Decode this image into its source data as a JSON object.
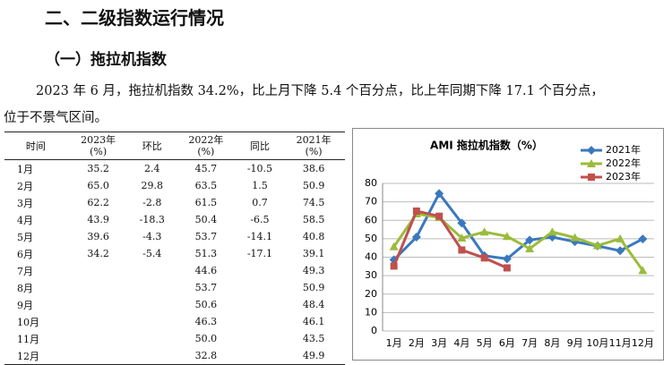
{
  "heading": "二、二级指数运行情况",
  "subheading": "（一）拖拉机指数",
  "paragraph": [
    "2023 年 6 月，拖拉机指数 34.2%，比上月下降 5.4 个百分点，比上年同期下降 17.1 个百分点，",
    "位于不景气区间。"
  ],
  "table": {
    "header": [
      [
        "时间"
      ],
      [
        "2023年",
        "(%)"
      ],
      [
        "环比"
      ],
      [
        "2022年",
        "(%)"
      ],
      [
        "同比"
      ],
      [
        "2021年",
        "(%)"
      ]
    ],
    "rows": [
      [
        "1月",
        "35.2",
        "2.4",
        "45.7",
        "-10.5",
        "38.6"
      ],
      [
        "2月",
        "65.0",
        "29.8",
        "63.5",
        "1.5",
        "50.9"
      ],
      [
        "3月",
        "62.2",
        "-2.8",
        "61.5",
        "0.7",
        "74.5"
      ],
      [
        "4月",
        "43.9",
        "-18.3",
        "50.4",
        "-6.5",
        "58.5"
      ],
      [
        "5月",
        "39.6",
        "-4.3",
        "53.7",
        "-14.1",
        "40.8"
      ],
      [
        "6月",
        "34.2",
        "-5.4",
        "51.3",
        "-17.1",
        "39.1"
      ],
      [
        "7月",
        null,
        null,
        "44.6",
        null,
        "49.3"
      ],
      [
        "8月",
        null,
        null,
        "53.7",
        null,
        "50.9"
      ],
      [
        "9月",
        null,
        null,
        "50.6",
        null,
        "48.4"
      ],
      [
        "10月",
        null,
        null,
        "46.3",
        null,
        "46.1"
      ],
      [
        "11月",
        null,
        null,
        "50.0",
        null,
        "43.5"
      ],
      [
        "12月",
        null,
        null,
        "32.8",
        null,
        "49.9"
      ]
    ]
  },
  "chart_data": {
    "type": "line",
    "title": "AMI 拖拉机指数（%）",
    "categories": [
      "1月",
      "2月",
      "3月",
      "4月",
      "5月",
      "6月",
      "7月",
      "8月",
      "9月",
      "10月",
      "11月",
      "12月"
    ],
    "ylim": [
      0,
      80
    ],
    "yticks": [
      0,
      10,
      20,
      30,
      40,
      50,
      60,
      70,
      80
    ],
    "grid": true,
    "legend": "top-right",
    "series": [
      {
        "name": "2021年",
        "color": "#3a78bd",
        "marker": "diamond",
        "values": [
          38.6,
          50.9,
          74.5,
          58.5,
          40.8,
          39.1,
          49.3,
          50.9,
          48.4,
          46.1,
          43.5,
          49.9
        ]
      },
      {
        "name": "2022年",
        "color": "#9bbb3b",
        "marker": "triangle",
        "values": [
          45.7,
          63.5,
          61.5,
          50.4,
          53.7,
          51.3,
          44.6,
          53.7,
          50.6,
          46.3,
          50.0,
          32.8
        ]
      },
      {
        "name": "2023年",
        "color": "#c0504d",
        "marker": "square",
        "values": [
          35.2,
          65.0,
          62.2,
          43.9,
          39.6,
          34.2,
          null,
          null,
          null,
          null,
          null,
          null
        ]
      }
    ]
  }
}
